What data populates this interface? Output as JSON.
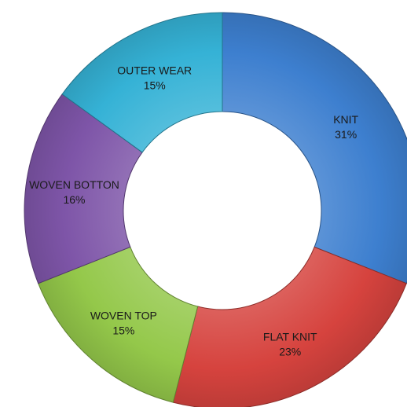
{
  "chart_data": {
    "type": "pie",
    "variant": "donut",
    "title": "",
    "legend": "none",
    "slices": [
      {
        "label": "KNIT",
        "value": 31,
        "value_label": "31%",
        "color": "#3d7fcf"
      },
      {
        "label": "FLAT KNIT",
        "value": 23,
        "value_label": "23%",
        "color": "#d6433e"
      },
      {
        "label": "WOVEN TOP",
        "value": 15,
        "value_label": "15%",
        "color": "#94c84a"
      },
      {
        "label": "WOVEN BOTTON",
        "value": 16,
        "value_label": "16%",
        "color": "#7e55a8"
      },
      {
        "label": "OUTER WEAR",
        "value": 15,
        "value_label": "15%",
        "color": "#35b2d6"
      }
    ]
  }
}
